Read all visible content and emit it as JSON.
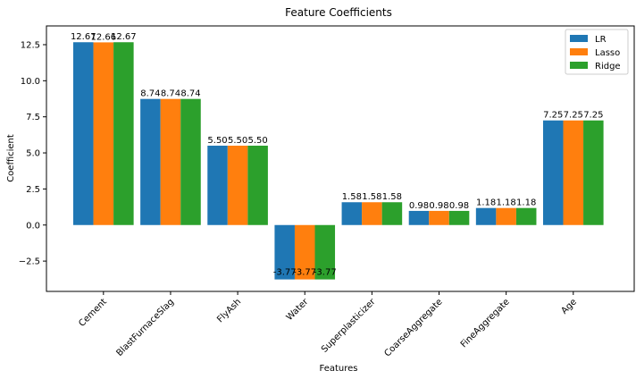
{
  "chart_data": {
    "type": "bar",
    "title": "Feature Coefficients",
    "xlabel": "Features",
    "ylabel": "Coefficient",
    "categories": [
      "Cement",
      "BlastFurnaceSlag",
      "FlyAsh",
      "Water",
      "Superplasticizer",
      "CoarseAggregate",
      "FineAggregate",
      "Age"
    ],
    "series": [
      {
        "name": "LR",
        "color": "#1f77b4",
        "values": [
          12.67,
          8.74,
          5.5,
          -3.77,
          1.58,
          0.98,
          1.18,
          7.25
        ]
      },
      {
        "name": "Lasso",
        "color": "#ff7f0e",
        "values": [
          12.66,
          8.74,
          5.5,
          -3.77,
          1.58,
          0.98,
          1.18,
          7.25
        ]
      },
      {
        "name": "Ridge",
        "color": "#2ca02c",
        "values": [
          12.67,
          8.74,
          5.5,
          -3.77,
          1.58,
          0.98,
          1.18,
          7.25
        ]
      }
    ],
    "data_labels": [
      [
        "12.67",
        "8.74",
        "5.50",
        "-3.77",
        "1.58",
        "0.98",
        "1.18",
        "7.25"
      ],
      [
        "12.66",
        "8.74",
        "5.50",
        "-3.77",
        "1.58",
        "0.98",
        "1.18",
        "7.25"
      ],
      [
        "12.67",
        "8.74",
        "5.50",
        "-3.77",
        "1.58",
        "0.98",
        "1.18",
        "7.25"
      ]
    ],
    "yticks": [
      -2.5,
      0.0,
      2.5,
      5.0,
      7.5,
      10.0,
      12.5
    ],
    "ytick_labels": [
      "−2.5",
      "0.0",
      "2.5",
      "5.0",
      "7.5",
      "10.0",
      "12.5"
    ],
    "ylim": [
      -4.6,
      13.8
    ],
    "grid": false,
    "legend_position": "top-right"
  }
}
